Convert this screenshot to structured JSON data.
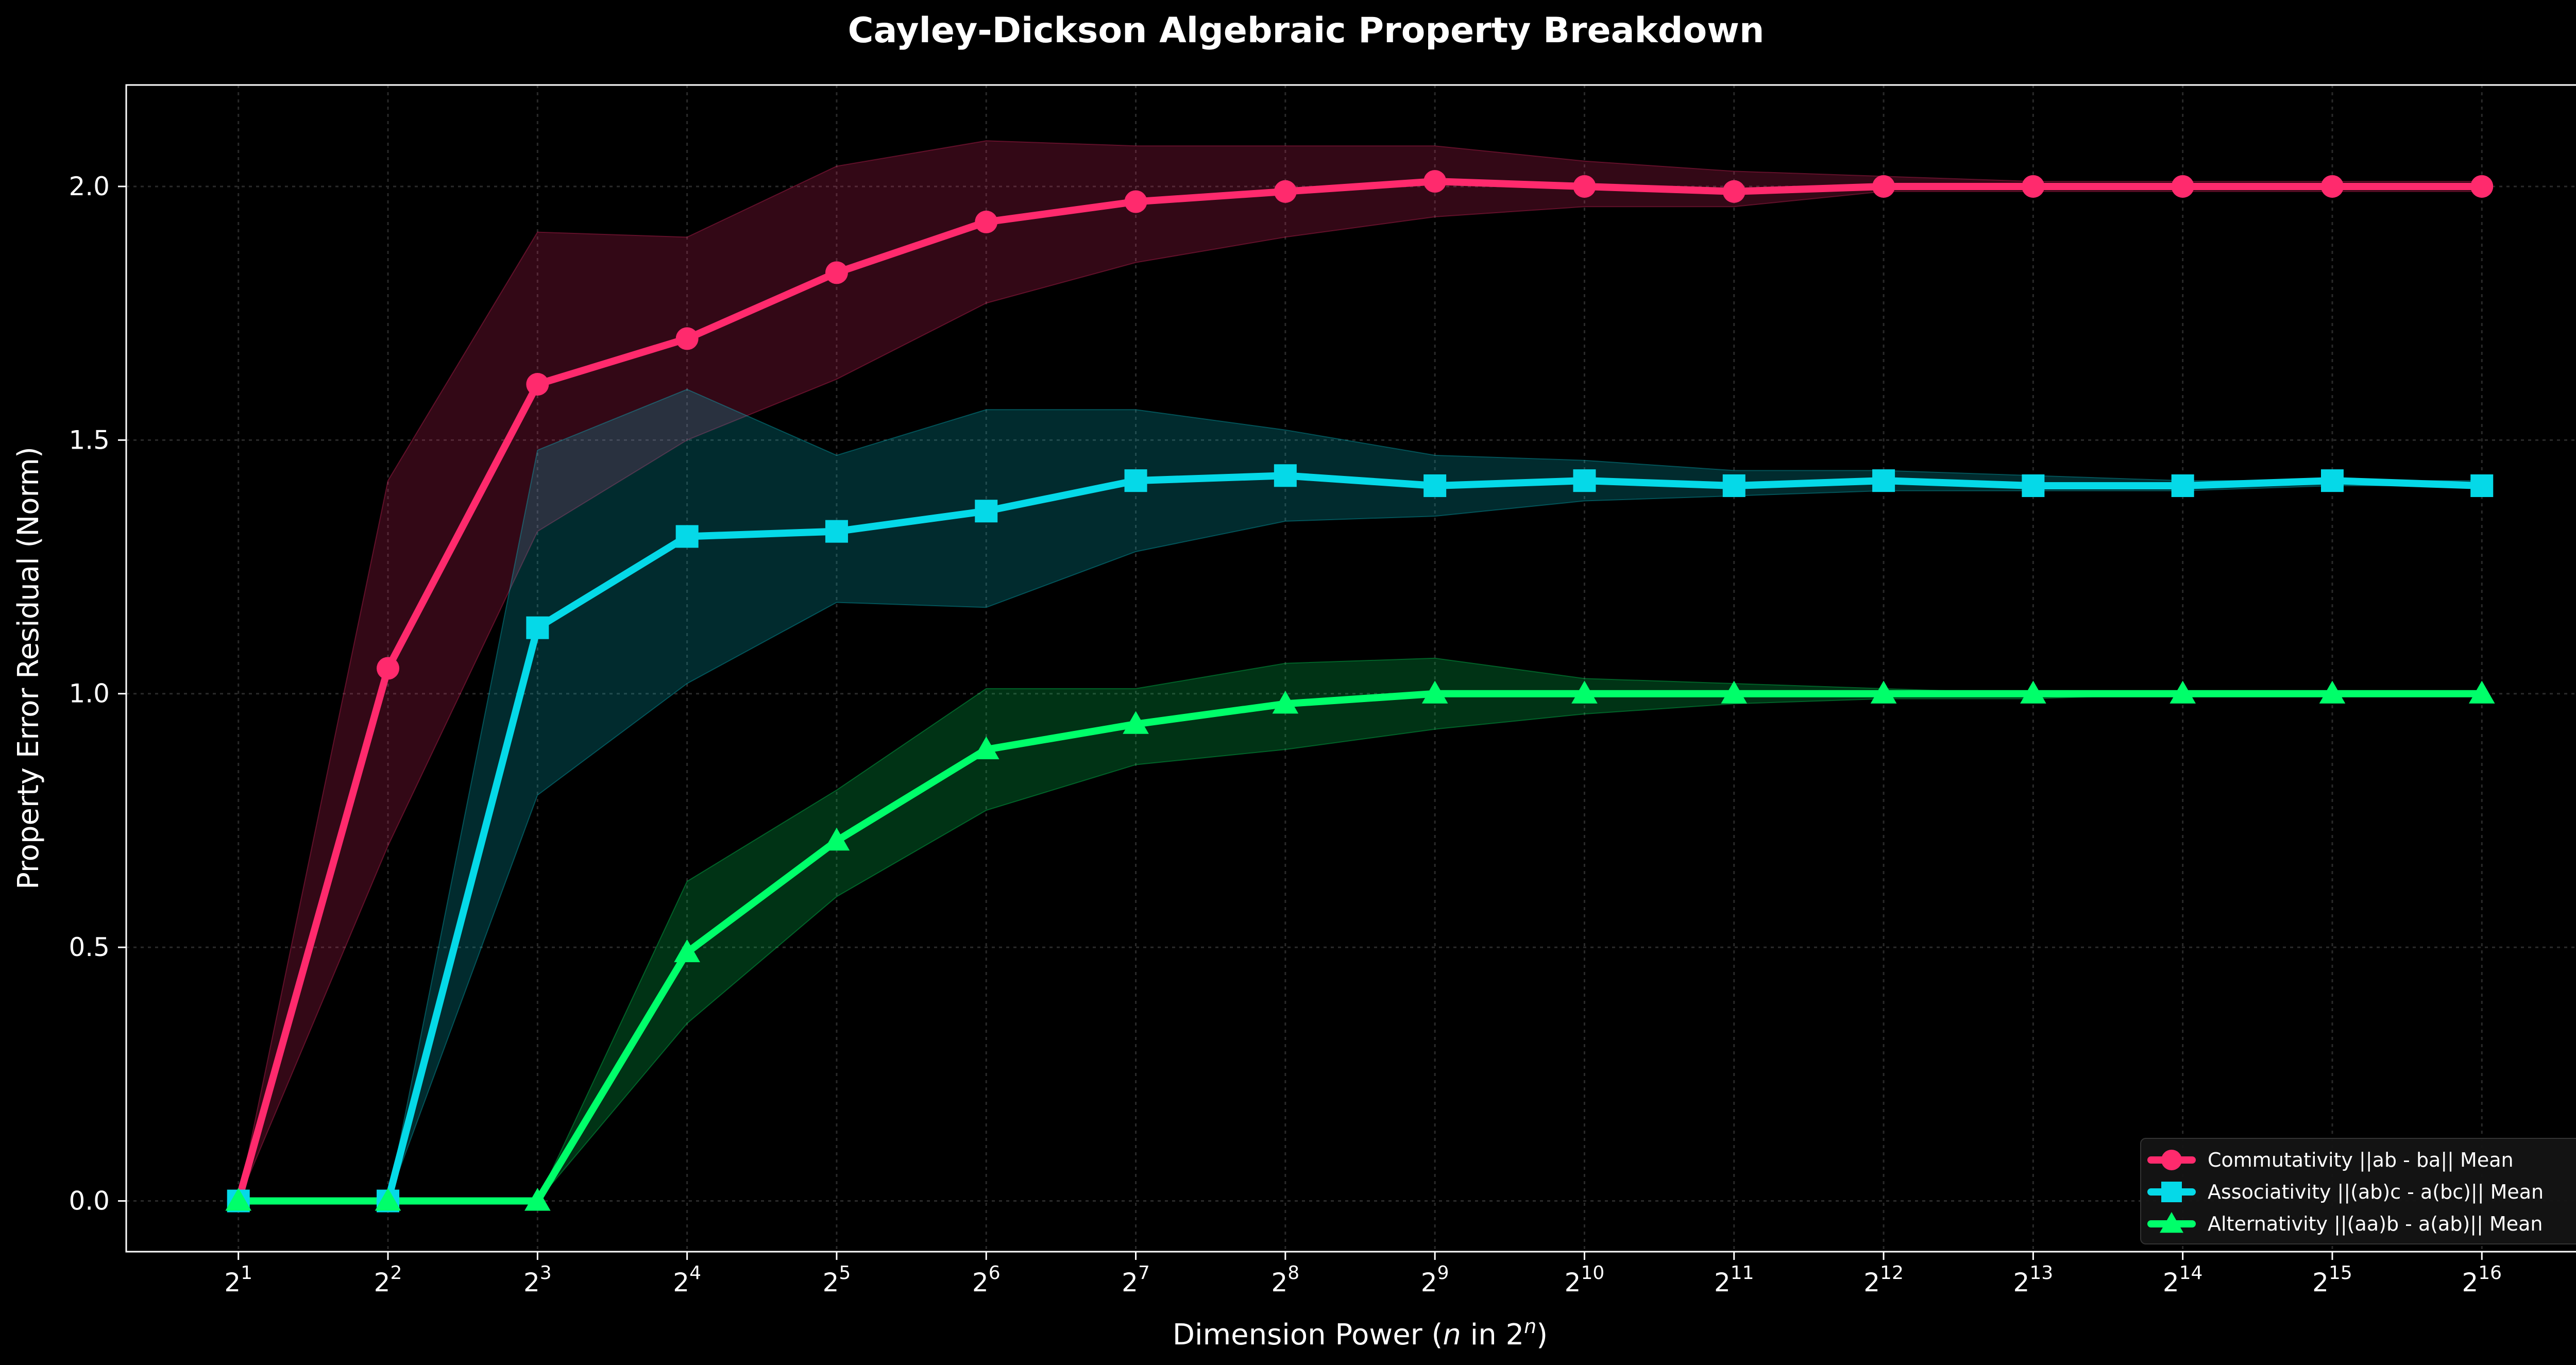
{
  "chart_data": {
    "type": "line",
    "title": "Cayley-Dickson Algebraic Property Breakdown",
    "xlabel": "Dimension Power (n in 2ⁿ)",
    "xlabel_parts": {
      "before": "Dimension Power (",
      "var": "n",
      "mid": " in 2",
      "sup": "n",
      "after": ")"
    },
    "ylabel": "Property Error Residual (Norm)",
    "x_base": "2",
    "x": [
      1,
      2,
      3,
      4,
      5,
      6,
      7,
      8,
      9,
      10,
      11,
      12,
      13,
      14,
      15,
      16
    ],
    "x_tick_exponents": [
      "1",
      "2",
      "3",
      "4",
      "5",
      "6",
      "7",
      "8",
      "9",
      "10",
      "11",
      "12",
      "13",
      "14",
      "15",
      "16"
    ],
    "xlim": [
      0.25,
      16.75
    ],
    "ylim": [
      -0.1,
      2.2
    ],
    "y_ticks": [
      "0.0",
      "0.5",
      "1.0",
      "1.5",
      "2.0"
    ],
    "grid": true,
    "legend_position": "lower-right",
    "series": [
      {
        "name": "Commutativity ||ab - ba|| Mean",
        "color": "#ff2a6d",
        "marker": "circle",
        "values": [
          0.0,
          1.05,
          1.61,
          1.7,
          1.83,
          1.93,
          1.97,
          1.99,
          2.01,
          2.0,
          1.99,
          2.0,
          2.0,
          2.0,
          2.0,
          2.0
        ],
        "band_upper": [
          0.0,
          1.42,
          1.91,
          1.9,
          2.04,
          2.09,
          2.08,
          2.08,
          2.08,
          2.05,
          2.03,
          2.02,
          2.01,
          2.01,
          2.01,
          2.01
        ],
        "band_lower": [
          0.0,
          0.7,
          1.32,
          1.5,
          1.62,
          1.77,
          1.85,
          1.9,
          1.94,
          1.96,
          1.96,
          1.99,
          1.99,
          1.99,
          1.99,
          1.99
        ]
      },
      {
        "name": "Associativity ||(ab)c - a(bc)|| Mean",
        "color": "#05d9e8",
        "marker": "square",
        "values": [
          0.0,
          0.0,
          1.13,
          1.31,
          1.32,
          1.36,
          1.42,
          1.43,
          1.41,
          1.42,
          1.41,
          1.42,
          1.41,
          1.41,
          1.42,
          1.41
        ],
        "band_upper": [
          0.0,
          0.0,
          1.48,
          1.6,
          1.47,
          1.56,
          1.56,
          1.52,
          1.47,
          1.46,
          1.44,
          1.44,
          1.43,
          1.42,
          1.42,
          1.42
        ],
        "band_lower": [
          0.0,
          0.0,
          0.8,
          1.02,
          1.18,
          1.17,
          1.28,
          1.34,
          1.35,
          1.38,
          1.39,
          1.4,
          1.4,
          1.4,
          1.41,
          1.41
        ]
      },
      {
        "name": "Alternativity ||(aa)b - a(ab)|| Mean",
        "color": "#00ff6a",
        "marker": "triangle",
        "values": [
          0.0,
          0.0,
          0.0,
          0.49,
          0.71,
          0.89,
          0.94,
          0.98,
          1.0,
          1.0,
          1.0,
          1.0,
          1.0,
          1.0,
          1.0,
          1.0
        ],
        "band_upper": [
          0.0,
          0.0,
          0.0,
          0.63,
          0.81,
          1.01,
          1.01,
          1.06,
          1.07,
          1.03,
          1.02,
          1.01,
          1.0,
          1.0,
          1.0,
          1.0
        ],
        "band_lower": [
          0.0,
          0.0,
          0.0,
          0.35,
          0.6,
          0.77,
          0.86,
          0.89,
          0.93,
          0.96,
          0.98,
          0.99,
          0.99,
          1.0,
          1.0,
          1.0
        ]
      }
    ]
  }
}
